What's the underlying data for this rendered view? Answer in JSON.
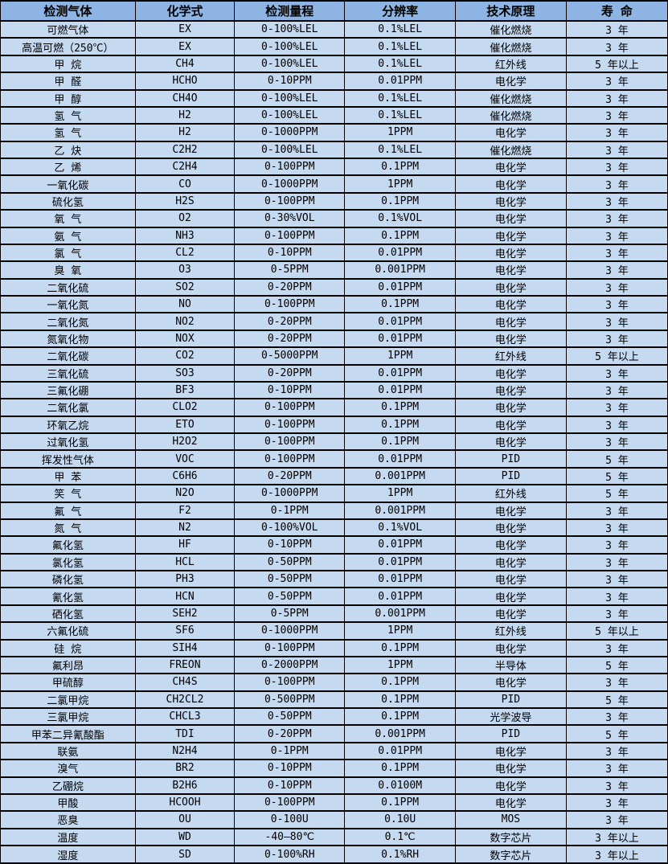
{
  "table": {
    "columns": [
      "检测气体",
      "化学式",
      "检测量程",
      "分辨率",
      "技术原理",
      "寿 命"
    ],
    "column_keys": [
      "gas-name",
      "formula",
      "range",
      "resolution",
      "principle",
      "lifespan"
    ],
    "rows": [
      [
        "可燃气体",
        "EX",
        "0-100%LEL",
        "0.1%LEL",
        "催化燃烧",
        "3 年"
      ],
      [
        "高温可燃（250℃）",
        "EX",
        "0-100%LEL",
        "0.1%LEL",
        "催化燃烧",
        "3 年"
      ],
      [
        "甲 烷",
        "CH4",
        "0-100%LEL",
        "0.1%LEL",
        "红外线",
        "5 年以上"
      ],
      [
        "甲 醛",
        "HCHO",
        "0-10PPM",
        "0.01PPM",
        "电化学",
        "3 年"
      ],
      [
        "甲 醇",
        "CH4O",
        "0-100%LEL",
        "0.1%LEL",
        "催化燃烧",
        "3 年"
      ],
      [
        "氢 气",
        "H2",
        "0-100%LEL",
        "0.1%LEL",
        "催化燃烧",
        "3 年"
      ],
      [
        "氢 气",
        "H2",
        "0-1000PPM",
        "1PPM",
        "电化学",
        "3 年"
      ],
      [
        "乙 炔",
        "C2H2",
        "0-100%LEL",
        "0.1%LEL",
        "催化燃烧",
        "3 年"
      ],
      [
        "乙 烯",
        "C2H4",
        "0-100PPM",
        "0.1PPM",
        "电化学",
        "3 年"
      ],
      [
        "一氧化碳",
        "CO",
        "0-1000PPM",
        "1PPM",
        "电化学",
        "3 年"
      ],
      [
        "硫化氢",
        "H2S",
        "0-100PPM",
        "0.1PPM",
        "电化学",
        "3 年"
      ],
      [
        "氧 气",
        "O2",
        "0-30%VOL",
        "0.1%VOL",
        "电化学",
        "3 年"
      ],
      [
        "氨 气",
        "NH3",
        "0-100PPM",
        "0.1PPM",
        "电化学",
        "3 年"
      ],
      [
        "氯 气",
        "CL2",
        "0-10PPM",
        "0.01PPM",
        "电化学",
        "3 年"
      ],
      [
        "臭 氧",
        "O3",
        "0-5PPM",
        "0.001PPM",
        "电化学",
        "3 年"
      ],
      [
        "二氧化硫",
        "SO2",
        "0-20PPM",
        "0.01PPM",
        "电化学",
        "3 年"
      ],
      [
        "一氧化氮",
        "NO",
        "0-100PPM",
        "0.1PPM",
        "电化学",
        "3 年"
      ],
      [
        "二氧化氮",
        "NO2",
        "0-20PPM",
        "0.01PPM",
        "电化学",
        "3 年"
      ],
      [
        "氮氧化物",
        "NOX",
        "0-20PPM",
        "0.01PPM",
        "电化学",
        "3 年"
      ],
      [
        "二氧化碳",
        "CO2",
        "0-5000PPM",
        "1PPM",
        "红外线",
        "5 年以上"
      ],
      [
        "三氧化硫",
        "SO3",
        "0-20PPM",
        "0.01PPM",
        "电化学",
        "3 年"
      ],
      [
        "三氟化硼",
        "BF3",
        "0-10PPM",
        "0.01PPM",
        "电化学",
        "3 年"
      ],
      [
        "二氧化氯",
        "CLO2",
        "0-100PPM",
        "0.1PPM",
        "电化学",
        "3 年"
      ],
      [
        "环氧乙烷",
        "ETO",
        "0-100PPM",
        "0.1PPM",
        "电化学",
        "3 年"
      ],
      [
        "过氧化氢",
        "H2O2",
        "0-100PPM",
        "0.1PPM",
        "电化学",
        "3 年"
      ],
      [
        "挥发性气体",
        "VOC",
        "0-100PPM",
        "0.01PPM",
        "PID",
        "5 年"
      ],
      [
        "甲 苯",
        "C6H6",
        "0-20PPM",
        "0.001PPM",
        "PID",
        "5 年"
      ],
      [
        "笑 气",
        "N2O",
        "0-1000PPM",
        "1PPM",
        "红外线",
        "5 年"
      ],
      [
        "氟 气",
        "F2",
        "0-1PPM",
        "0.001PPM",
        "电化学",
        "3 年"
      ],
      [
        "氮 气",
        "N2",
        "0-100%VOL",
        "0.1%VOL",
        "电化学",
        "3 年"
      ],
      [
        "氟化氢",
        "HF",
        "0-10PPM",
        "0.01PPM",
        "电化学",
        "3 年"
      ],
      [
        "氯化氢",
        "HCL",
        "0-50PPM",
        "0.01PPM",
        "电化学",
        "3 年"
      ],
      [
        "磷化氢",
        "PH3",
        "0-50PPM",
        "0.01PPM",
        "电化学",
        "3 年"
      ],
      [
        "氰化氢",
        "HCN",
        "0-50PPM",
        "0.01PPM",
        "电化学",
        "3 年"
      ],
      [
        "硒化氢",
        "SEH2",
        "0-5PPM",
        "0.001PPM",
        "电化学",
        "3 年"
      ],
      [
        "六氟化硫",
        "SF6",
        "0-1000PPM",
        "1PPM",
        "红外线",
        "5 年以上"
      ],
      [
        "硅 烷",
        "SIH4",
        "0-100PPM",
        "0.1PPM",
        "电化学",
        "3 年"
      ],
      [
        "氟利昂",
        "FREON",
        "0-2000PPM",
        "1PPM",
        "半导体",
        "5 年"
      ],
      [
        "甲硫醇",
        "CH4S",
        "0-100PPM",
        "0.1PPM",
        "电化学",
        "3 年"
      ],
      [
        "二氯甲烷",
        "CH2CL2",
        "0-500PPM",
        "0.1PPM",
        "PID",
        "5 年"
      ],
      [
        "三氯甲烷",
        "CHCL3",
        "0-50PPM",
        "0.1PPM",
        "光学波导",
        "3 年"
      ],
      [
        "甲苯二异氰酸酯",
        "TDI",
        "0-20PPM",
        "0.001PPM",
        "PID",
        "5 年"
      ],
      [
        "联氨",
        "N2H4",
        "0-1PPM",
        "0.01PPM",
        "电化学",
        "3 年"
      ],
      [
        "溴气",
        "BR2",
        "0-10PPM",
        "0.1PPM",
        "电化学",
        "3 年"
      ],
      [
        "乙硼烷",
        "B2H6",
        "0-10PPM",
        "0.0100M",
        "电化学",
        "3 年"
      ],
      [
        "甲酸",
        "HCOOH",
        "0-100PPM",
        "0.1PPM",
        "电化学",
        "3 年"
      ],
      [
        "恶臭",
        "OU",
        "0-100U",
        "0.10U",
        "MOS",
        "3 年"
      ],
      [
        "温度",
        "WD",
        "-40—80℃",
        "0.1℃",
        "数字芯片",
        "3 年以上"
      ],
      [
        "湿度",
        "SD",
        "0-100%RH",
        "0.1%RH",
        "数字芯片",
        "3 年以上"
      ]
    ]
  },
  "colors": {
    "header_bg": "#8DB4E2",
    "row_bg": "#C5D9F1",
    "border": "#000000",
    "text": "#000000"
  }
}
